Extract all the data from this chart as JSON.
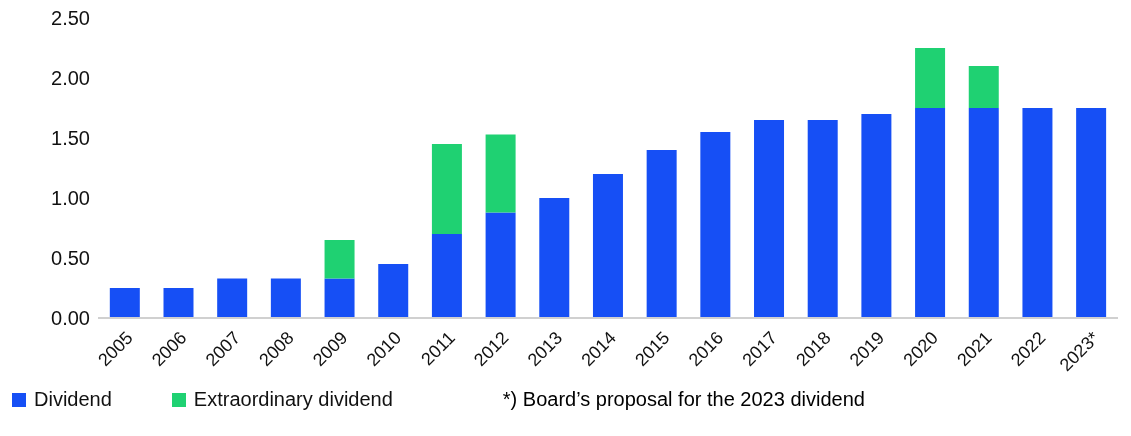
{
  "chart_data": {
    "type": "bar",
    "stacked": true,
    "categories": [
      "2005",
      "2006",
      "2007",
      "2008",
      "2009",
      "2010",
      "2011",
      "2012",
      "2013",
      "2014",
      "2015",
      "2016",
      "2017",
      "2018",
      "2019",
      "2020",
      "2021",
      "2022",
      "2023*"
    ],
    "series": [
      {
        "name": "Dividend",
        "color": "#164ff5",
        "values": [
          0.25,
          0.25,
          0.33,
          0.33,
          0.33,
          0.45,
          0.7,
          0.88,
          1.0,
          1.2,
          1.4,
          1.55,
          1.65,
          1.65,
          1.7,
          1.75,
          1.75,
          1.75,
          1.75
        ]
      },
      {
        "name": "Extraordinary dividend",
        "color": "#1fd172",
        "values": [
          null,
          null,
          null,
          null,
          0.32,
          null,
          0.75,
          0.65,
          null,
          null,
          null,
          null,
          null,
          null,
          null,
          0.5,
          0.35,
          null,
          null
        ]
      }
    ],
    "ylim": [
      0,
      2.5
    ],
    "yticks": [
      {
        "value": 0,
        "label": "0.00"
      },
      {
        "value": 0.5,
        "label": "0.50"
      },
      {
        "value": 1,
        "label": "1.00"
      },
      {
        "value": 1.5,
        "label": "1.50"
      },
      {
        "value": 2,
        "label": "2.00"
      },
      {
        "value": 2.5,
        "label": "2.50"
      }
    ],
    "grid": false,
    "legend": "bottom left",
    "annotations": [
      "*) Board’s proposal for the 2023 dividend"
    ]
  }
}
